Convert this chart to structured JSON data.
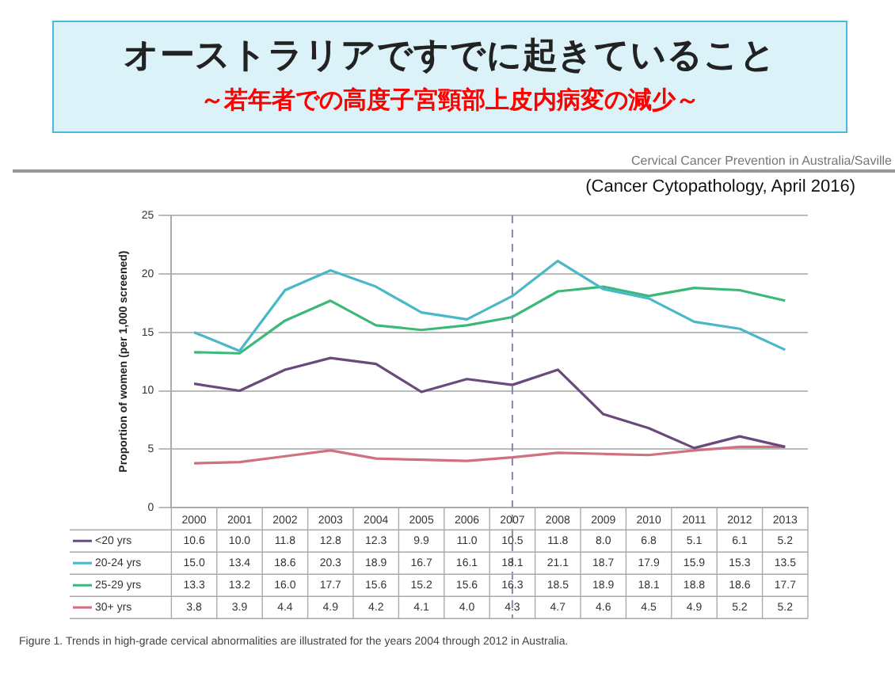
{
  "chart_data": {
    "type": "line",
    "title": "オーストラリアですでに起きていること",
    "subtitle": "～若年者での高度子宮頸部上皮内病変の減少～",
    "annotations": [
      "Cervical Cancer Prevention in Australia/Saville",
      "(Cancer Cytopathology, April 2016)",
      "Figure 1. Trends in high-grade cervical abnormalities are illustrated for the years 2004 through 2012 in Australia."
    ],
    "ylabel": "Proportion of women (per 1,000 screened)",
    "categories": [
      "2000",
      "2001",
      "2002",
      "2003",
      "2004",
      "2005",
      "2006",
      "2007",
      "2008",
      "2009",
      "2010",
      "2011",
      "2012",
      "2013"
    ],
    "series": [
      {
        "name": "<20 yrs",
        "color": "#6a4a7a",
        "values": [
          10.6,
          10.0,
          11.8,
          12.8,
          12.3,
          9.9,
          11.0,
          10.5,
          11.8,
          8.0,
          6.8,
          5.1,
          6.1,
          5.2
        ],
        "value_labels": [
          "10.6",
          "10.0",
          "11.8",
          "12.8",
          "12.3",
          "9.9",
          "11.0",
          "10.5",
          "11.8",
          "8.0",
          "6.8",
          "5.1",
          "6.1",
          "5.2"
        ]
      },
      {
        "name": "20-24 yrs",
        "color": "#4ab8c8",
        "values": [
          15.0,
          13.4,
          18.6,
          20.3,
          18.9,
          16.7,
          16.1,
          18.1,
          21.1,
          18.7,
          17.9,
          15.9,
          15.3,
          13.5
        ],
        "value_labels": [
          "15.0",
          "13.4",
          "18.6",
          "20.3",
          "18.9",
          "16.7",
          "16.1",
          "18.1",
          "21.1",
          "18.7",
          "17.9",
          "15.9",
          "15.3",
          "13.5"
        ]
      },
      {
        "name": "25-29 yrs",
        "color": "#3cb878",
        "values": [
          13.3,
          13.2,
          16.0,
          17.7,
          15.6,
          15.2,
          15.6,
          16.3,
          18.5,
          18.9,
          18.1,
          18.8,
          18.6,
          17.7
        ],
        "value_labels": [
          "13.3",
          "13.2",
          "16.0",
          "17.7",
          "15.6",
          "15.2",
          "15.6",
          "16.3",
          "18.5",
          "18.9",
          "18.1",
          "18.8",
          "18.6",
          "17.7"
        ]
      },
      {
        "name": "30+ yrs",
        "color": "#d07080",
        "values": [
          3.8,
          3.9,
          4.4,
          4.9,
          4.2,
          4.1,
          4.0,
          4.3,
          4.7,
          4.6,
          4.5,
          4.9,
          5.2,
          5.2
        ],
        "value_labels": [
          "3.8",
          "3.9",
          "4.4",
          "4.9",
          "4.2",
          "4.1",
          "4.0",
          "4.3",
          "4.7",
          "4.6",
          "4.5",
          "4.9",
          "5.2",
          "5.2"
        ]
      }
    ],
    "ylim": [
      0,
      25
    ],
    "yticks": [
      0,
      5,
      10,
      15,
      20,
      25
    ],
    "grid": "y",
    "legend": "bottom left",
    "marker": "none",
    "line_style": "solid",
    "ref_lines": [
      {
        "axis": "x",
        "value": "2007",
        "line_style": "dashed",
        "color": "#8888aa"
      }
    ]
  }
}
